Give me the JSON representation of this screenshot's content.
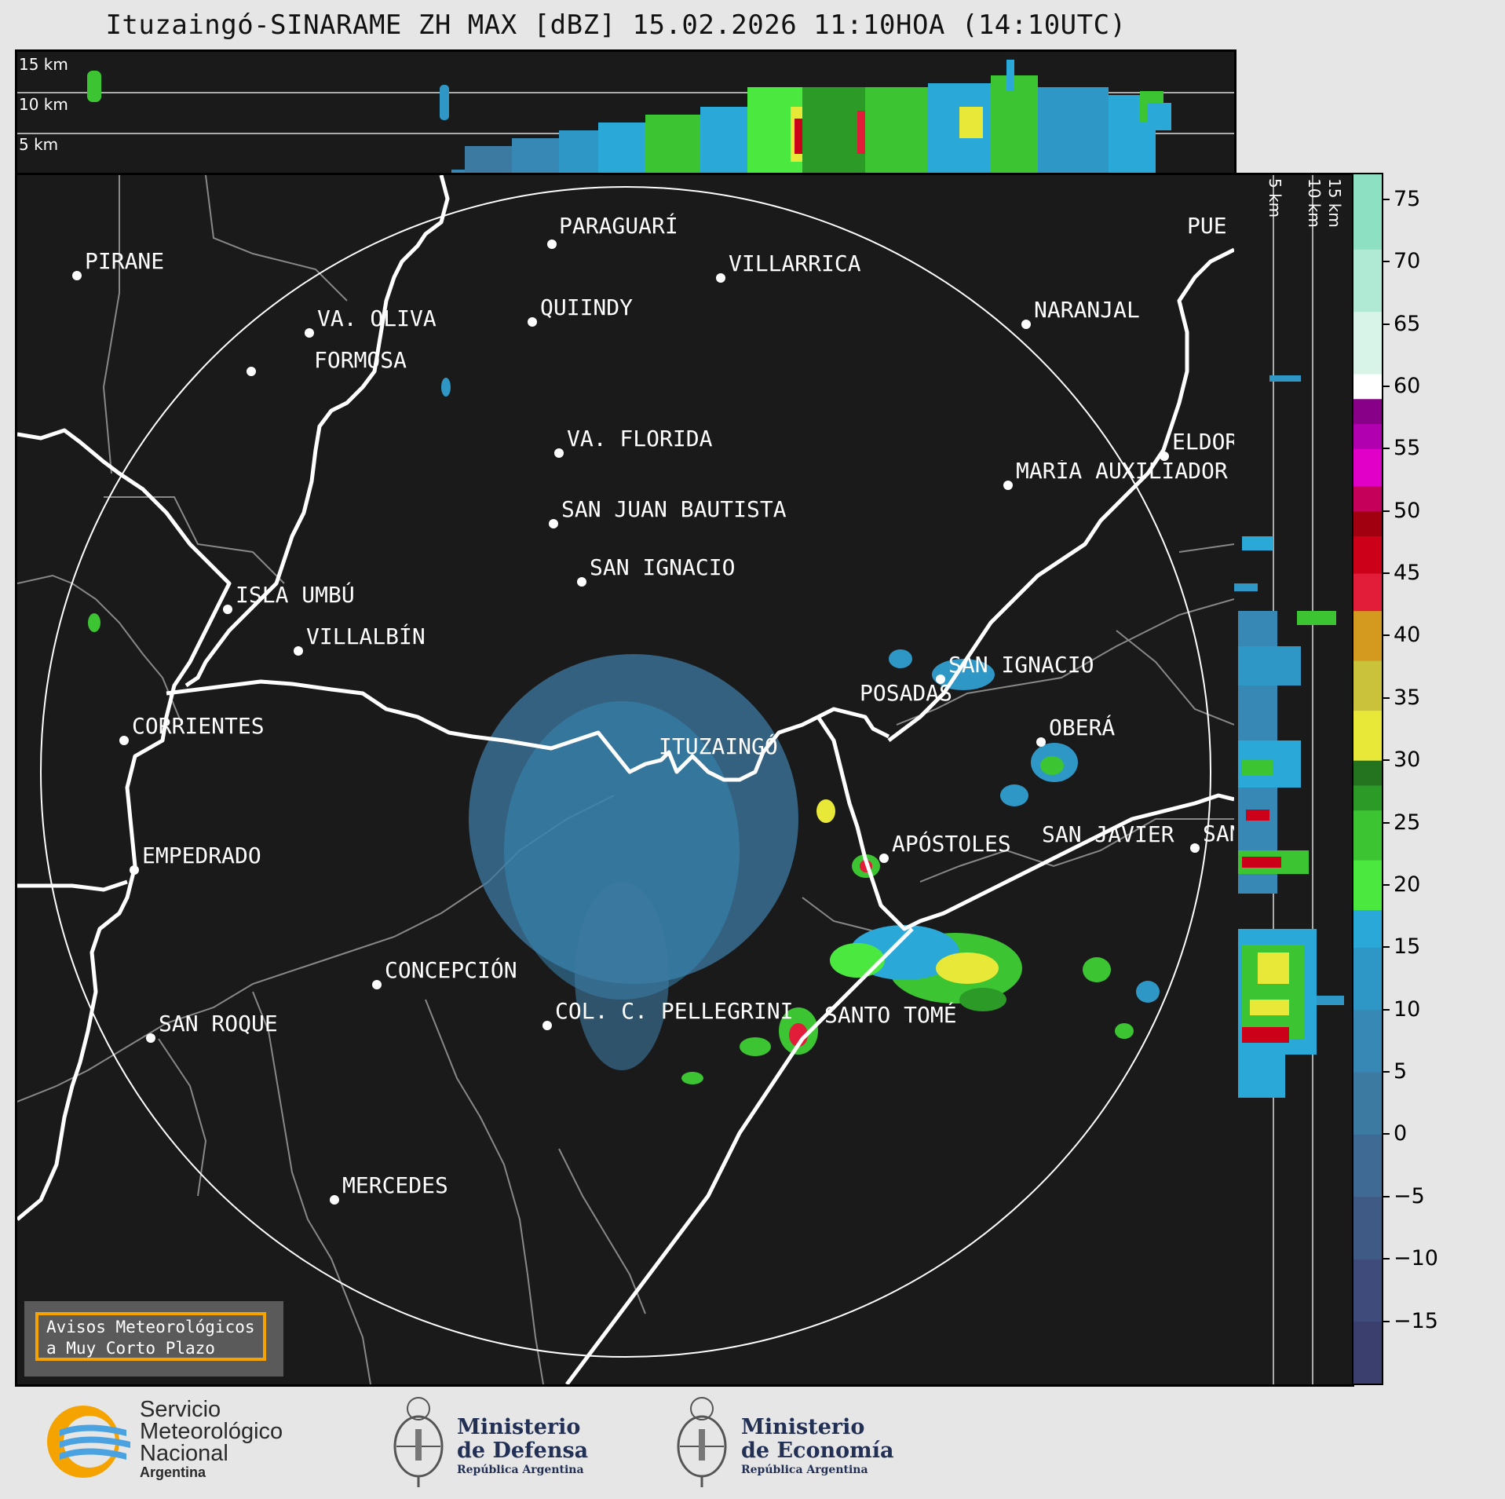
{
  "title": "Ituzaingó-SINARAME ZH MAX [dBZ] 15.02.2026 11:10HOA (14:10UTC)",
  "height_labels": {
    "h15": "15 km",
    "h10": "10 km",
    "h5": "5 km"
  },
  "cities": [
    {
      "name": "PIRANE"
    },
    {
      "name": "PARAGUARÍ"
    },
    {
      "name": "VILLARRICA"
    },
    {
      "name": "QUIINDY"
    },
    {
      "name": "VA. OLIVA"
    },
    {
      "name": "FORMOSA"
    },
    {
      "name": "NARANJAL"
    },
    {
      "name": "VA. FLORIDA"
    },
    {
      "name": "ELDOR"
    },
    {
      "name": "MARÍA AUXILIADOR"
    },
    {
      "name": "SAN JUAN BAUTISTA"
    },
    {
      "name": "SAN IGNACIO"
    },
    {
      "name": "ISLA UMBÚ"
    },
    {
      "name": "VILLALBÍN"
    },
    {
      "name": "SAN IGNACIO"
    },
    {
      "name": "POSADAS"
    },
    {
      "name": "CORRIENTES"
    },
    {
      "name": "ITUZAINGÓ"
    },
    {
      "name": "OBERÁ"
    },
    {
      "name": "APÓSTOLES"
    },
    {
      "name": "SAN JAVIER"
    },
    {
      "name": "SAN"
    },
    {
      "name": "EMPEDRADO"
    },
    {
      "name": "CONCEPCIÓN"
    },
    {
      "name": "COL. C. PELLEGRINI"
    },
    {
      "name": "SANTO TOMÉ"
    },
    {
      "name": "SAN ROQUE"
    },
    {
      "name": "MERCEDES"
    },
    {
      "name": "PUE"
    }
  ],
  "colorbar": {
    "units": "dBZ",
    "range": [
      -20,
      77
    ],
    "ticks": [
      "75",
      "70",
      "65",
      "60",
      "55",
      "50",
      "45",
      "40",
      "35",
      "30",
      "25",
      "20",
      "15",
      "10",
      "5",
      "0",
      "−5",
      "−10",
      "−15"
    ],
    "tick_values": [
      75,
      70,
      65,
      60,
      55,
      50,
      45,
      40,
      35,
      30,
      25,
      20,
      15,
      10,
      5,
      0,
      -5,
      -10,
      -15
    ],
    "stops": [
      {
        "from": -20,
        "color": "#3b3f6e"
      },
      {
        "from": -15,
        "color": "#3f4b7a"
      },
      {
        "from": -10,
        "color": "#405a86"
      },
      {
        "from": -5,
        "color": "#3f6a94"
      },
      {
        "from": 0,
        "color": "#3d7aa2"
      },
      {
        "from": 5,
        "color": "#3788b4"
      },
      {
        "from": 10,
        "color": "#2f97c6"
      },
      {
        "from": 15,
        "color": "#2aa8d8"
      },
      {
        "from": 18,
        "color": "#4be840"
      },
      {
        "from": 22,
        "color": "#3cc433"
      },
      {
        "from": 26,
        "color": "#2b9a26"
      },
      {
        "from": 28,
        "color": "#24741f"
      },
      {
        "from": 30,
        "color": "#e8e838"
      },
      {
        "from": 34,
        "color": "#c9c23a"
      },
      {
        "from": 38,
        "color": "#d49a20"
      },
      {
        "from": 42,
        "color": "#e21d3a"
      },
      {
        "from": 45,
        "color": "#cc0018"
      },
      {
        "from": 48,
        "color": "#a00010"
      },
      {
        "from": 50,
        "color": "#c4005a"
      },
      {
        "from": 52,
        "color": "#e000c8"
      },
      {
        "from": 55,
        "color": "#b000b0"
      },
      {
        "from": 57,
        "color": "#880088"
      },
      {
        "from": 59,
        "color": "#ffffff"
      },
      {
        "from": 61,
        "color": "#d8f4e8"
      },
      {
        "from": 66,
        "color": "#b0ead4"
      },
      {
        "from": 71,
        "color": "#8ee0c2"
      }
    ]
  },
  "legend_box": {
    "line1": "Avisos Meteorológicos",
    "line2": "a Muy Corto Plazo"
  },
  "logos": {
    "smn_line1": "Servicio",
    "smn_line2": "Meteorológico",
    "smn_line3": "Nacional",
    "smn_line4": "Argentina",
    "defensa_line1": "Ministerio",
    "defensa_line2": "de Defensa",
    "defensa_line3": "República Argentina",
    "economia_line1": "Ministerio",
    "economia_line2": "de Economía",
    "economia_line3": "República Argentina"
  }
}
